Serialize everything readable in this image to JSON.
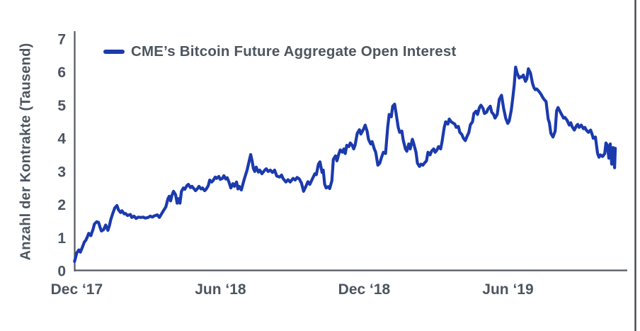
{
  "chart_data": {
    "type": "line",
    "title": "",
    "ylabel": "Anzahl der Kontrakte (Tausend)",
    "xlabel": "",
    "legend_position": "top-left-inside",
    "grid": false,
    "ylim": [
      0,
      7
    ],
    "xlim": [
      -0.1,
      22.95
    ],
    "x_unit": "months_since_Dec_2017",
    "y_ticks": [
      0,
      1,
      2,
      3,
      4,
      5,
      6,
      7
    ],
    "x_ticks": [
      {
        "t": 0,
        "label": "Dec ‘17"
      },
      {
        "t": 6,
        "label": "Jun ‘18"
      },
      {
        "t": 12,
        "label": "Dec ‘18"
      },
      {
        "t": 18,
        "label": "Jun ‘19"
      }
    ],
    "colors": {
      "text": "#4c5560",
      "axis": "#54585f",
      "line": "#1b3aad",
      "figure_border": "#43474d"
    },
    "series": [
      {
        "name": "CME’s Bitcoin Future Aggregate Open Interest",
        "color": "#1b3aad",
        "points": [
          [
            -0.09,
            0.28
          ],
          [
            0,
            0.54
          ],
          [
            0.09,
            0.63
          ],
          [
            0.15,
            0.56
          ],
          [
            0.24,
            0.72
          ],
          [
            0.32,
            0.87
          ],
          [
            0.38,
            0.92
          ],
          [
            0.44,
            1.02
          ],
          [
            0.5,
            1.13
          ],
          [
            0.59,
            1.06
          ],
          [
            0.68,
            1.25
          ],
          [
            0.74,
            1.41
          ],
          [
            0.83,
            1.48
          ],
          [
            0.91,
            1.46
          ],
          [
            0.97,
            1.32
          ],
          [
            1.03,
            1.2
          ],
          [
            1.12,
            1.24
          ],
          [
            1.21,
            1.38
          ],
          [
            1.3,
            1.22
          ],
          [
            1.36,
            1.35
          ],
          [
            1.42,
            1.54
          ],
          [
            1.5,
            1.72
          ],
          [
            1.59,
            1.9
          ],
          [
            1.68,
            1.97
          ],
          [
            1.74,
            1.84
          ],
          [
            1.83,
            1.76
          ],
          [
            1.89,
            1.81
          ],
          [
            1.98,
            1.72
          ],
          [
            2.04,
            1.73
          ],
          [
            2.12,
            1.67
          ],
          [
            2.24,
            1.7
          ],
          [
            2.3,
            1.61
          ],
          [
            2.39,
            1.65
          ],
          [
            2.48,
            1.58
          ],
          [
            2.57,
            1.62
          ],
          [
            2.68,
            1.61
          ],
          [
            2.77,
            1.62
          ],
          [
            2.86,
            1.59
          ],
          [
            2.98,
            1.61
          ],
          [
            3.07,
            1.65
          ],
          [
            3.16,
            1.62
          ],
          [
            3.22,
            1.65
          ],
          [
            3.36,
            1.69
          ],
          [
            3.45,
            1.61
          ],
          [
            3.6,
            1.79
          ],
          [
            3.72,
            1.93
          ],
          [
            3.81,
            2.18
          ],
          [
            3.86,
            2.25
          ],
          [
            3.92,
            2.11
          ],
          [
            3.98,
            2.29
          ],
          [
            4.04,
            2.4
          ],
          [
            4.13,
            2.29
          ],
          [
            4.19,
            2.04
          ],
          [
            4.25,
            2.18
          ],
          [
            4.31,
            2.04
          ],
          [
            4.37,
            2.4
          ],
          [
            4.45,
            2.5
          ],
          [
            4.51,
            2.46
          ],
          [
            4.6,
            2.57
          ],
          [
            4.66,
            2.61
          ],
          [
            4.75,
            2.51
          ],
          [
            4.81,
            2.55
          ],
          [
            4.9,
            2.47
          ],
          [
            4.96,
            2.42
          ],
          [
            5.04,
            2.48
          ],
          [
            5.1,
            2.55
          ],
          [
            5.19,
            2.47
          ],
          [
            5.25,
            2.5
          ],
          [
            5.34,
            2.42
          ],
          [
            5.4,
            2.46
          ],
          [
            5.49,
            2.57
          ],
          [
            5.55,
            2.74
          ],
          [
            5.63,
            2.68
          ],
          [
            5.69,
            2.72
          ],
          [
            5.78,
            2.83
          ],
          [
            5.84,
            2.79
          ],
          [
            5.93,
            2.85
          ],
          [
            5.99,
            2.76
          ],
          [
            6.08,
            2.79
          ],
          [
            6.14,
            2.87
          ],
          [
            6.22,
            2.77
          ],
          [
            6.28,
            2.81
          ],
          [
            6.37,
            2.65
          ],
          [
            6.43,
            2.5
          ],
          [
            6.52,
            2.63
          ],
          [
            6.58,
            2.55
          ],
          [
            6.67,
            2.68
          ],
          [
            6.73,
            2.47
          ],
          [
            6.78,
            2.55
          ],
          [
            6.87,
            2.44
          ],
          [
            6.99,
            2.76
          ],
          [
            7.11,
            3.04
          ],
          [
            7.2,
            3.32
          ],
          [
            7.26,
            3.51
          ],
          [
            7.32,
            3.32
          ],
          [
            7.37,
            3.1
          ],
          [
            7.43,
            3
          ],
          [
            7.49,
            3.13
          ],
          [
            7.58,
            2.98
          ],
          [
            7.64,
            3.04
          ],
          [
            7.73,
            2.93
          ],
          [
            7.85,
            3.04
          ],
          [
            7.91,
            3.08
          ],
          [
            7.99,
            3
          ],
          [
            8.08,
            3.04
          ],
          [
            8.17,
            2.97
          ],
          [
            8.26,
            3.04
          ],
          [
            8.35,
            2.86
          ],
          [
            8.47,
            2.83
          ],
          [
            8.55,
            2.89
          ],
          [
            8.61,
            2.79
          ],
          [
            8.73,
            2.68
          ],
          [
            8.82,
            2.75
          ],
          [
            8.91,
            2.68
          ],
          [
            9.03,
            2.79
          ],
          [
            9.12,
            2.74
          ],
          [
            9.2,
            2.82
          ],
          [
            9.29,
            2.77
          ],
          [
            9.38,
            2.65
          ],
          [
            9.47,
            2.4
          ],
          [
            9.56,
            2.54
          ],
          [
            9.65,
            2.69
          ],
          [
            9.73,
            2.61
          ],
          [
            9.82,
            2.75
          ],
          [
            9.94,
            2.93
          ],
          [
            10,
            2.9
          ],
          [
            10.09,
            3.22
          ],
          [
            10.15,
            3.29
          ],
          [
            10.24,
            2.97
          ],
          [
            10.29,
            3.04
          ],
          [
            10.35,
            2.61
          ],
          [
            10.41,
            2.5
          ],
          [
            10.5,
            2.54
          ],
          [
            10.56,
            2.48
          ],
          [
            10.65,
            2.72
          ],
          [
            10.71,
            3.36
          ],
          [
            10.8,
            3.47
          ],
          [
            10.86,
            3.32
          ],
          [
            10.94,
            3.53
          ],
          [
            11,
            3.65
          ],
          [
            11.09,
            3.58
          ],
          [
            11.15,
            3.68
          ],
          [
            11.21,
            3.54
          ],
          [
            11.27,
            3.79
          ],
          [
            11.36,
            3.75
          ],
          [
            11.42,
            3.86
          ],
          [
            11.5,
            3.79
          ],
          [
            11.56,
            3.68
          ],
          [
            11.62,
            3.8
          ],
          [
            11.71,
            4.15
          ],
          [
            11.8,
            4.26
          ],
          [
            11.86,
            4.13
          ],
          [
            11.98,
            4.29
          ],
          [
            12.04,
            4.4
          ],
          [
            12.12,
            4.22
          ],
          [
            12.18,
            3.97
          ],
          [
            12.27,
            3.83
          ],
          [
            12.33,
            3.9
          ],
          [
            12.42,
            3.68
          ],
          [
            12.48,
            3.58
          ],
          [
            12.57,
            3.19
          ],
          [
            12.65,
            3.25
          ],
          [
            12.71,
            3.4
          ],
          [
            12.8,
            3.58
          ],
          [
            12.89,
            3.54
          ],
          [
            12.98,
            4.33
          ],
          [
            13.04,
            4.72
          ],
          [
            13.13,
            4.65
          ],
          [
            13.19,
            4.97
          ],
          [
            13.27,
            5.03
          ],
          [
            13.33,
            4.75
          ],
          [
            13.42,
            4.33
          ],
          [
            13.48,
            4.18
          ],
          [
            13.57,
            4.22
          ],
          [
            13.63,
            3.94
          ],
          [
            13.72,
            3.68
          ],
          [
            13.78,
            3.61
          ],
          [
            13.86,
            3.83
          ],
          [
            13.92,
            3.68
          ],
          [
            14.01,
            3.97
          ],
          [
            14.07,
            3.83
          ],
          [
            14.16,
            3.58
          ],
          [
            14.22,
            3.25
          ],
          [
            14.31,
            3.15
          ],
          [
            14.37,
            3.22
          ],
          [
            14.45,
            3.19
          ],
          [
            14.51,
            3.25
          ],
          [
            14.6,
            3.32
          ],
          [
            14.66,
            3.58
          ],
          [
            14.75,
            3.5
          ],
          [
            14.81,
            3.61
          ],
          [
            14.9,
            3.68
          ],
          [
            14.96,
            3.58
          ],
          [
            15.04,
            3.65
          ],
          [
            15.1,
            3.75
          ],
          [
            15.19,
            3.68
          ],
          [
            15.25,
            3.9
          ],
          [
            15.34,
            4.33
          ],
          [
            15.4,
            4.5
          ],
          [
            15.49,
            4.43
          ],
          [
            15.55,
            4.58
          ],
          [
            15.63,
            4.5
          ],
          [
            15.69,
            4.47
          ],
          [
            15.78,
            4.43
          ],
          [
            15.84,
            4.33
          ],
          [
            15.93,
            4.36
          ],
          [
            15.99,
            4.18
          ],
          [
            16.08,
            4.11
          ],
          [
            16.14,
            4
          ],
          [
            16.22,
            3.93
          ],
          [
            16.28,
            4.04
          ],
          [
            16.37,
            4.18
          ],
          [
            16.43,
            4.41
          ],
          [
            16.52,
            4.5
          ],
          [
            16.58,
            4.75
          ],
          [
            16.67,
            4.82
          ],
          [
            16.73,
            4.72
          ],
          [
            16.81,
            4.93
          ],
          [
            16.87,
            5
          ],
          [
            16.96,
            4.9
          ],
          [
            17.02,
            4.75
          ],
          [
            17.11,
            4.79
          ],
          [
            17.17,
            4.89
          ],
          [
            17.26,
            4.97
          ],
          [
            17.32,
            4.79
          ],
          [
            17.4,
            4.72
          ],
          [
            17.46,
            4.61
          ],
          [
            17.55,
            4.72
          ],
          [
            17.64,
            5.18
          ],
          [
            17.73,
            5.3
          ],
          [
            17.82,
            4.9
          ],
          [
            17.91,
            4.6
          ],
          [
            17.99,
            4.45
          ],
          [
            18.05,
            4.52
          ],
          [
            18.14,
            4.85
          ],
          [
            18.2,
            5.22
          ],
          [
            18.26,
            5.6
          ],
          [
            18.32,
            6.15
          ],
          [
            18.38,
            5.97
          ],
          [
            18.47,
            5.82
          ],
          [
            18.53,
            5.86
          ],
          [
            18.58,
            5.85
          ],
          [
            18.64,
            5.91
          ],
          [
            18.73,
            5.72
          ],
          [
            18.79,
            5.8
          ],
          [
            18.85,
            6.1
          ],
          [
            18.94,
            5.97
          ],
          [
            19.03,
            5.65
          ],
          [
            19.09,
            5.52
          ],
          [
            19.14,
            5.47
          ],
          [
            19.2,
            5.49
          ],
          [
            19.29,
            5.42
          ],
          [
            19.38,
            5.33
          ],
          [
            19.44,
            5.25
          ],
          [
            19.5,
            5.18
          ],
          [
            19.59,
            5.11
          ],
          [
            19.68,
            4.58
          ],
          [
            19.73,
            4.47
          ],
          [
            19.79,
            4.15
          ],
          [
            19.88,
            4.04
          ],
          [
            19.97,
            4.22
          ],
          [
            20.03,
            4.83
          ],
          [
            20.09,
            4.93
          ],
          [
            20.18,
            4.8
          ],
          [
            20.27,
            4.68
          ],
          [
            20.32,
            4.61
          ],
          [
            20.38,
            4.63
          ],
          [
            20.47,
            4.54
          ],
          [
            20.56,
            4.4
          ],
          [
            20.62,
            4.47
          ],
          [
            20.68,
            4.35
          ],
          [
            20.77,
            4.25
          ],
          [
            20.86,
            4.38
          ],
          [
            20.91,
            4.42
          ],
          [
            20.97,
            4.33
          ],
          [
            21.06,
            4.4
          ],
          [
            21.15,
            4.29
          ],
          [
            21.21,
            4.33
          ],
          [
            21.27,
            4.25
          ],
          [
            21.36,
            4.18
          ],
          [
            21.45,
            4.25
          ],
          [
            21.5,
            4.15
          ],
          [
            21.56,
            4
          ],
          [
            21.65,
            4.04
          ],
          [
            21.74,
            3.54
          ],
          [
            21.8,
            3.43
          ],
          [
            21.86,
            3.5
          ],
          [
            21.95,
            3.45
          ],
          [
            22.04,
            3.54
          ],
          [
            22.09,
            3.86
          ],
          [
            22.15,
            3.79
          ],
          [
            22.21,
            3.4
          ],
          [
            22.27,
            3.83
          ],
          [
            22.33,
            3.22
          ],
          [
            22.39,
            3.72
          ],
          [
            22.45,
            3.11
          ],
          [
            22.48,
            3.7
          ]
        ]
      }
    ]
  }
}
